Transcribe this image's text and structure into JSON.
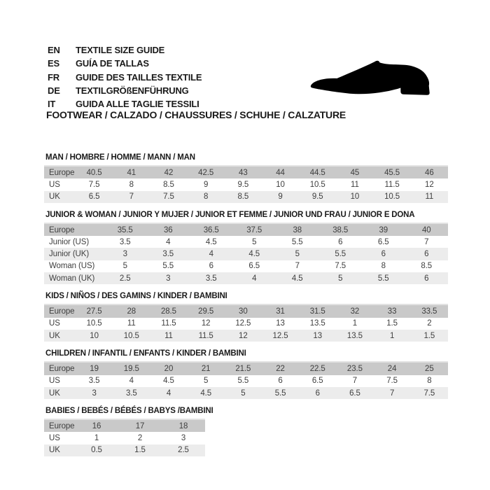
{
  "page": {
    "language_guide": [
      {
        "code": "EN",
        "text": "TEXTILE SIZE GUIDE"
      },
      {
        "code": "ES",
        "text": "GUÍA DE TALLAS"
      },
      {
        "code": "FR",
        "text": "GUIDE DES TAILLES TEXTILE"
      },
      {
        "code": "DE",
        "text": "TEXTILGRÖßENFÜHRUNG"
      },
      {
        "code": "IT",
        "text": "GUIDA ALLE TAGLIE TESSILI"
      }
    ],
    "category_heading": "FOOTWEAR / CALZADO / CHAUSSURES / SCHUHE / CALZATURE",
    "icons": {
      "shoe": "dress-shoe-silhouette"
    }
  },
  "colors": {
    "header_row_bg": "#c9c9c9",
    "alt_row_bg": "#ececec",
    "row_bg": "#ffffff",
    "text": "#3f3f3f",
    "heading_text": "#1a1a1a"
  },
  "size_tables": [
    {
      "id": "man",
      "title": "MAN / HOMBRE / HOMME / MANN / MAN",
      "rows": [
        {
          "label": "Europe",
          "type": "header",
          "values": [
            "40.5",
            "41",
            "42",
            "42.5",
            "43",
            "44",
            "44.5",
            "45",
            "45.5",
            "46"
          ]
        },
        {
          "label": "US",
          "type": "data",
          "values": [
            "7.5",
            "8",
            "8.5",
            "9",
            "9.5",
            "10",
            "10.5",
            "11",
            "11.5",
            "12"
          ]
        },
        {
          "label": "UK",
          "type": "data-alt",
          "values": [
            "6.5",
            "7",
            "7.5",
            "8",
            "8.5",
            "9",
            "9.5",
            "10",
            "10.5",
            "11"
          ]
        }
      ]
    },
    {
      "id": "junior-woman",
      "title": "JUNIOR & WOMAN / JUNIOR Y MUJER / JUNIOR ET FEMME / JUNIOR UND FRAU / JUNIOR E DONA",
      "rows": [
        {
          "label": "Europe",
          "type": "header",
          "values": [
            "35.5",
            "36",
            "36.5",
            "37.5",
            "38",
            "38.5",
            "39",
            "40"
          ]
        },
        {
          "label": "Junior (US)",
          "type": "data",
          "values": [
            "3.5",
            "4",
            "4.5",
            "5",
            "5.5",
            "6",
            "6.5",
            "7"
          ]
        },
        {
          "label": "Junior (UK)",
          "type": "data-alt",
          "values": [
            "3",
            "3.5",
            "4",
            "4.5",
            "5",
            "5.5",
            "6",
            "6"
          ]
        },
        {
          "label": "Woman (US)",
          "type": "data",
          "values": [
            "5",
            "5.5",
            "6",
            "6.5",
            "7",
            "7.5",
            "8",
            "8.5"
          ]
        },
        {
          "label": "Woman (UK)",
          "type": "data-alt",
          "values": [
            "2.5",
            "3",
            "3.5",
            "4",
            "4.5",
            "5",
            "5.5",
            "6"
          ]
        }
      ]
    },
    {
      "id": "kids",
      "title": "KIDS / NIÑOS / DES GAMINS / KINDER / BAMBINI",
      "rows": [
        {
          "label": "Europe",
          "type": "header",
          "values": [
            "27.5",
            "28",
            "28.5",
            "29.5",
            "30",
            "31",
            "31.5",
            "32",
            "33",
            "33.5"
          ]
        },
        {
          "label": "US",
          "type": "data",
          "values": [
            "10.5",
            "11",
            "11.5",
            "12",
            "12.5",
            "13",
            "13.5",
            "1",
            "1.5",
            "2"
          ]
        },
        {
          "label": "UK",
          "type": "data-alt",
          "values": [
            "10",
            "10.5",
            "11",
            "11.5",
            "12",
            "12.5",
            "13",
            "13.5",
            "1",
            "1.5"
          ]
        }
      ]
    },
    {
      "id": "children",
      "title": "CHILDREN / INFANTIL / ENFANTS / KINDER / BAMBINI",
      "rows": [
        {
          "label": "Europe",
          "type": "header",
          "values": [
            "19",
            "19.5",
            "20",
            "21",
            "21.5",
            "22",
            "22.5",
            "23.5",
            "24",
            "25"
          ]
        },
        {
          "label": "US",
          "type": "data",
          "values": [
            "3.5",
            "4",
            "4.5",
            "5",
            "5.5",
            "6",
            "6.5",
            "7",
            "7.5",
            "8"
          ]
        },
        {
          "label": "UK",
          "type": "data-alt",
          "values": [
            "3",
            "3.5",
            "4",
            "4.5",
            "5",
            "5.5",
            "6",
            "6.5",
            "7",
            "7.5"
          ]
        }
      ]
    },
    {
      "id": "babies",
      "title": "BABIES  / BEBÉS / BÉBÉS / BABYS /BAMBINI",
      "rows": [
        {
          "label": "Europe",
          "type": "header",
          "values": [
            "16",
            "17",
            "18"
          ]
        },
        {
          "label": "US",
          "type": "data",
          "values": [
            "1",
            "2",
            "3"
          ]
        },
        {
          "label": "UK",
          "type": "data-alt",
          "values": [
            "0.5",
            "1.5",
            "2.5"
          ]
        }
      ]
    }
  ]
}
